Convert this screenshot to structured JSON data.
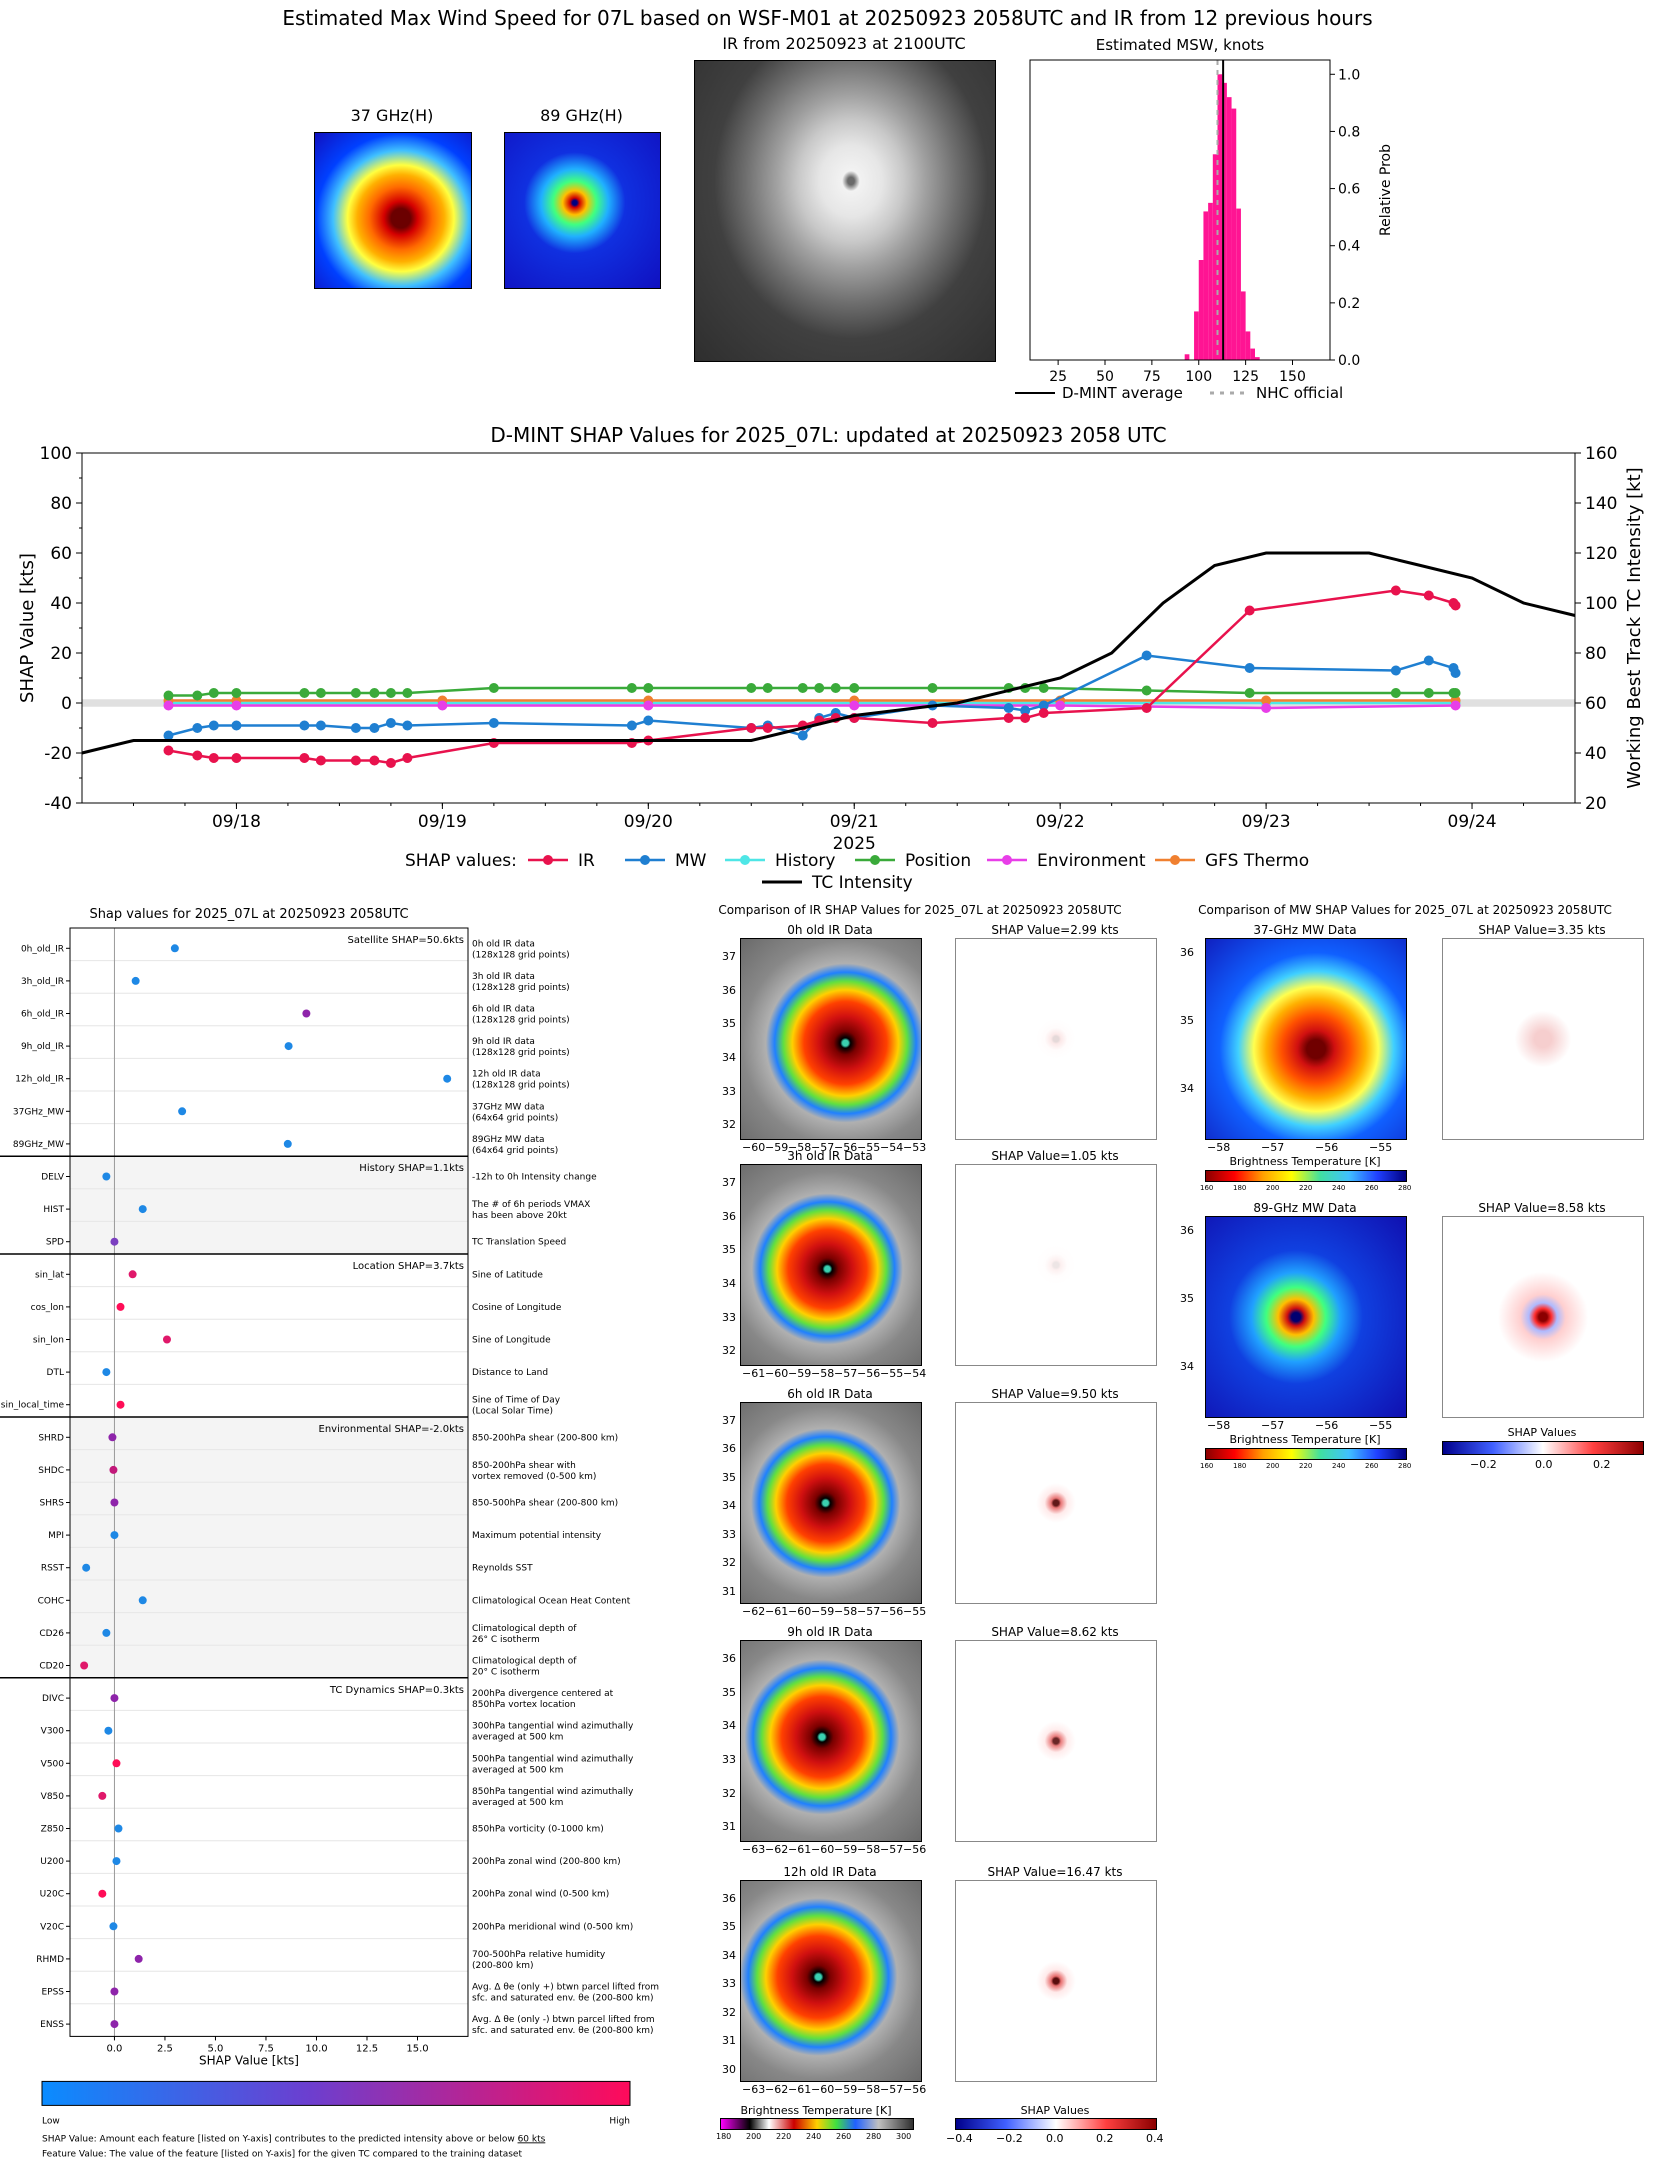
{
  "header": {
    "title": "Estimated Max Wind Speed for 07L based on WSF-M01 at 20250923 2058UTC and IR from 12 previous hours",
    "mw37_title": "37 GHz(H)",
    "mw89_title": "89 GHz(H)",
    "ir_title": "IR from 20250923 at 2100UTC",
    "hist_title": "Estimated MSW, knots",
    "hist_ylabel": "Relative Prob",
    "hist_legend_dmint": "D-MINT average",
    "hist_legend_nhc": "NHC official"
  },
  "shap_ts": {
    "title": "D-MINT SHAP Values for 2025_07L: updated at 20250923 2058 UTC",
    "ylabel_left": "SHAP Value [kts]",
    "ylabel_right": "Working Best Track TC Intensity [kt]",
    "xlabel": "2025",
    "legend_title": "SHAP values:",
    "legend_ir": "IR",
    "legend_mw": "MW",
    "legend_history": "History",
    "legend_position": "Position",
    "legend_environment": "Environment",
    "legend_gfs": "GFS Thermo",
    "legend_tc": "TC Intensity"
  },
  "beeswarm": {
    "title": "Shap values for 2025_07L at 20250923 2058UTC",
    "xlabel": "SHAP Value [kts]",
    "colorbar_low": "Low",
    "colorbar_high": "High",
    "footnote1_pre": "SHAP Value: Amount each feature [listed on Y-axis] contributes to the predicted intensity above or below ",
    "footnote1_link": "60 kts",
    "footnote2": "Feature Value: The value of the feature [listed on Y-axis] for the given TC compared to the training dataset",
    "groups": [
      {
        "label": "Satellite SHAP=50.6kts"
      },
      {
        "label": "History SHAP=1.1kts"
      },
      {
        "label": "Location SHAP=3.7kts"
      },
      {
        "label": "Environmental SHAP=-2.0kts"
      },
      {
        "label": "TC Dynamics SHAP=0.3kts"
      }
    ],
    "features": [
      {
        "name": "0h_old_IR",
        "desc1": "0h old IR data",
        "desc2": "(128x128 grid points)"
      },
      {
        "name": "3h_old_IR",
        "desc1": "3h old IR data",
        "desc2": "(128x128 grid points)"
      },
      {
        "name": "6h_old_IR",
        "desc1": "6h old IR data",
        "desc2": "(128x128 grid points)"
      },
      {
        "name": "9h_old_IR",
        "desc1": "9h old IR data",
        "desc2": "(128x128 grid points)"
      },
      {
        "name": "12h_old_IR",
        "desc1": "12h old IR data",
        "desc2": "(128x128 grid points)"
      },
      {
        "name": "37GHz_MW",
        "desc1": "37GHz MW data",
        "desc2": "(64x64 grid points)"
      },
      {
        "name": "89GHz_MW",
        "desc1": "89GHz MW data",
        "desc2": "(64x64 grid points)"
      },
      {
        "name": "DELV",
        "desc1": "-12h to 0h Intensity change",
        "desc2": ""
      },
      {
        "name": "HIST",
        "desc1": "The # of 6h periods VMAX",
        "desc2": "has been above 20kt"
      },
      {
        "name": "SPD",
        "desc1": "TC Translation Speed",
        "desc2": ""
      },
      {
        "name": "sin_lat",
        "desc1": "Sine of Latitude",
        "desc2": ""
      },
      {
        "name": "cos_lon",
        "desc1": "Cosine of Longitude",
        "desc2": ""
      },
      {
        "name": "sin_lon",
        "desc1": "Sine of Longitude",
        "desc2": ""
      },
      {
        "name": "DTL",
        "desc1": "Distance to Land",
        "desc2": ""
      },
      {
        "name": "sin_local_time",
        "desc1": "Sine of Time of Day",
        "desc2": "(Local Solar Time)"
      },
      {
        "name": "SHRD",
        "desc1": "850-200hPa shear (200-800 km)",
        "desc2": ""
      },
      {
        "name": "SHDC",
        "desc1": "850-200hPa shear with",
        "desc2": "vortex removed (0-500 km)"
      },
      {
        "name": "SHRS",
        "desc1": "850-500hPa shear (200-800 km)",
        "desc2": ""
      },
      {
        "name": "MPI",
        "desc1": "Maximum potential intensity",
        "desc2": ""
      },
      {
        "name": "RSST",
        "desc1": "Reynolds SST",
        "desc2": ""
      },
      {
        "name": "COHC",
        "desc1": "Climatological Ocean Heat Content",
        "desc2": ""
      },
      {
        "name": "CD26",
        "desc1": "Climatological depth of",
        "desc2": "26° C isotherm"
      },
      {
        "name": "CD20",
        "desc1": "Climatological depth of",
        "desc2": "20° C isotherm"
      },
      {
        "name": "DIVC",
        "desc1": "200hPa divergence centered at",
        "desc2": "850hPa vortex location"
      },
      {
        "name": "V300",
        "desc1": "300hPa tangential wind azimuthally",
        "desc2": "averaged at 500 km"
      },
      {
        "name": "V500",
        "desc1": "500hPa tangential wind azimuthally",
        "desc2": "averaged at 500 km"
      },
      {
        "name": "V850",
        "desc1": "850hPa tangential wind azimuthally",
        "desc2": "averaged at 500 km"
      },
      {
        "name": "Z850",
        "desc1": "850hPa vorticity (0-1000 km)",
        "desc2": ""
      },
      {
        "name": "U200",
        "desc1": "200hPa zonal wind (200-800 km)",
        "desc2": ""
      },
      {
        "name": "U20C",
        "desc1": "200hPa zonal wind (0-500 km)",
        "desc2": ""
      },
      {
        "name": "V20C",
        "desc1": "200hPa meridional wind (0-500 km)",
        "desc2": ""
      },
      {
        "name": "RHMD",
        "desc1": "700-500hPa relative humidity",
        "desc2": "(200-800 km)"
      },
      {
        "name": "EPSS",
        "desc1": "Avg. Δ θe (only +) btwn parcel lifted from",
        "desc2": "sfc. and saturated env. θe (200-800 km)"
      },
      {
        "name": "ENSS",
        "desc1": "Avg. Δ θe (only -) btwn parcel lifted from",
        "desc2": "sfc. and saturated env. θe (200-800 km)"
      }
    ]
  },
  "ir_compare": {
    "title": "Comparison of IR SHAP Values for 2025_07L at 20250923 2058UTC",
    "panels": [
      {
        "title": "0h old IR Data",
        "shap": "SHAP Value=2.99 kts"
      },
      {
        "title": "3h old IR Data",
        "shap": "SHAP Value=1.05 kts"
      },
      {
        "title": "6h old IR Data",
        "shap": "SHAP Value=9.50 kts"
      },
      {
        "title": "9h old IR Data",
        "shap": "SHAP Value=8.62 kts"
      },
      {
        "title": "12h old IR Data",
        "shap": "SHAP Value=16.47 kts"
      }
    ],
    "cb_bt_label": "Brightness Temperature [K]",
    "cb_shap_label": "SHAP Values"
  },
  "mw_compare": {
    "title": "Comparison of MW SHAP Values for 2025_07L at 20250923 2058UTC",
    "panels": [
      {
        "title": "37-GHz MW Data",
        "shap": "SHAP Value=3.35 kts"
      },
      {
        "title": "89-GHz MW Data",
        "shap": "SHAP Value=8.58 kts"
      }
    ],
    "cb_bt_label": "Brightness Temperature [K]",
    "cb_shap_label": "SHAP Values"
  },
  "colors": {
    "ir": "#e8124d",
    "mw": "#1f7fd1",
    "history": "#4ee6e6",
    "position": "#3aaa3a",
    "environment": "#e83ee8",
    "gfs": "#f08030",
    "tc": "#000000",
    "hist_bar": "#ff1493"
  },
  "chart_data": [
    {
      "type": "bar",
      "title": "Estimated MSW, knots",
      "ylabel": "Relative Prob",
      "x": [
        92.5,
        97.5,
        100,
        102.5,
        105,
        107.5,
        110,
        112.5,
        115,
        117.5,
        120,
        122.5,
        125,
        127.5,
        130
      ],
      "values": [
        0.02,
        0.17,
        0.35,
        0.52,
        0.55,
        0.72,
        1.0,
        0.97,
        0.92,
        0.88,
        0.53,
        0.24,
        0.1,
        0.04,
        0.01
      ],
      "xticks": [
        25,
        50,
        75,
        100,
        125,
        150
      ],
      "yticks": [
        0.0,
        0.2,
        0.4,
        0.6,
        0.8,
        1.0
      ],
      "xlim": [
        10,
        170
      ],
      "ylim": [
        0,
        1.05
      ],
      "dmint_average": 113,
      "nhc_official": 110
    },
    {
      "type": "line",
      "title": "D-MINT SHAP Values for 2025_07L: updated at 20250923 2058 UTC",
      "xlabel": "2025",
      "ylabel": "SHAP Value [kts]",
      "ylabel_right": "Working Best Track TC Intensity [kt]",
      "xticks": [
        "09/18",
        "09/19",
        "09/20",
        "09/21",
        "09/22",
        "09/23",
        "09/24"
      ],
      "xlim": [
        -0.75,
        6.5
      ],
      "ylim": [
        -40,
        100
      ],
      "ylim_right": [
        20,
        160
      ],
      "yticks": [
        -40,
        -20,
        0,
        20,
        40,
        60,
        80,
        100
      ],
      "yticks_right": [
        20,
        40,
        60,
        80,
        100,
        120,
        140,
        160
      ],
      "series": [
        {
          "name": "IR",
          "x": [
            -0.33,
            -0.19,
            -0.11,
            0.0,
            0.33,
            0.41,
            0.58,
            0.67,
            0.75,
            0.83,
            1.25,
            1.92,
            2.0,
            2.5,
            2.58,
            2.75,
            2.83,
            2.91,
            3.0,
            3.38,
            3.75,
            3.83,
            3.92,
            4.42,
            4.92,
            5.63,
            5.79,
            5.91,
            5.92
          ],
          "y": [
            -19,
            -21,
            -22,
            -22,
            -22,
            -23,
            -23,
            -23,
            -24,
            -22,
            -16,
            -16,
            -15,
            -10,
            -10,
            -9,
            -7,
            -6,
            -6,
            -8,
            -6,
            -6,
            -4,
            -2,
            37,
            45,
            43,
            40,
            39
          ]
        },
        {
          "name": "MW",
          "x": [
            -0.33,
            -0.19,
            -0.11,
            0.0,
            0.33,
            0.41,
            0.58,
            0.67,
            0.75,
            0.83,
            1.25,
            1.92,
            2.0,
            2.5,
            2.58,
            2.75,
            2.83,
            2.91,
            3.0,
            3.38,
            3.75,
            3.83,
            3.92,
            4.42,
            4.92,
            5.63,
            5.79,
            5.91,
            5.92
          ],
          "y": [
            -13,
            -10,
            -9,
            -9,
            -9,
            -9,
            -10,
            -10,
            -8,
            -9,
            -8,
            -9,
            -7,
            -10,
            -9,
            -13,
            -6,
            -4,
            -6,
            -1,
            -2,
            -3,
            -1,
            19,
            14,
            13,
            17,
            14,
            12
          ]
        },
        {
          "name": "History",
          "x": [
            -0.33,
            0.0,
            1.0,
            2.0,
            3.0,
            4.0,
            5.0,
            5.92
          ],
          "y": [
            0,
            0,
            0,
            0,
            0,
            0,
            0,
            0
          ]
        },
        {
          "name": "Position",
          "x": [
            -0.33,
            -0.19,
            -0.11,
            0.0,
            0.33,
            0.41,
            0.58,
            0.67,
            0.75,
            0.83,
            1.25,
            1.92,
            2.0,
            2.5,
            2.58,
            2.75,
            2.83,
            2.91,
            3.0,
            3.38,
            3.75,
            3.83,
            3.92,
            4.42,
            4.92,
            5.63,
            5.79,
            5.91,
            5.92
          ],
          "y": [
            3,
            3,
            4,
            4,
            4,
            4,
            4,
            4,
            4,
            4,
            6,
            6,
            6,
            6,
            6,
            6,
            6,
            6,
            6,
            6,
            6,
            6,
            6,
            5,
            4,
            4,
            4,
            4,
            4
          ]
        },
        {
          "name": "Environment",
          "x": [
            -0.33,
            0.0,
            1.0,
            2.0,
            3.0,
            4.0,
            5.0,
            5.92
          ],
          "y": [
            -1,
            -1,
            -1,
            -1,
            -1,
            -1,
            -2,
            -1
          ]
        },
        {
          "name": "GFS Thermo",
          "x": [
            -0.33,
            0.0,
            1.0,
            2.0,
            3.0,
            4.0,
            5.0,
            5.92
          ],
          "y": [
            1,
            1,
            1,
            1,
            1,
            1,
            1,
            1
          ]
        },
        {
          "name": "TC Intensity",
          "x": [
            -0.75,
            -0.5,
            0.0,
            0.5,
            1.0,
            1.5,
            2.0,
            2.5,
            3.0,
            3.5,
            4.0,
            4.25,
            4.5,
            4.75,
            5.0,
            5.25,
            5.5,
            5.75,
            6.0,
            6.25,
            6.5
          ],
          "y": [
            40,
            45,
            45,
            45,
            45,
            45,
            45,
            45,
            55,
            60,
            70,
            80,
            100,
            115,
            120,
            120,
            120,
            115,
            110,
            100,
            95
          ]
        }
      ]
    },
    {
      "type": "scatter",
      "title": "Shap values for 2025_07L at 20250923 2058UTC",
      "xlabel": "SHAP Value [kts]",
      "xticks": [
        0.0,
        2.5,
        5.0,
        7.5,
        10.0,
        12.5,
        15.0
      ],
      "xlim": [
        -2.2,
        17.5
      ],
      "features": [
        "0h_old_IR",
        "3h_old_IR",
        "6h_old_IR",
        "9h_old_IR",
        "12h_old_IR",
        "37GHz_MW",
        "89GHz_MW",
        "DELV",
        "HIST",
        "SPD",
        "sin_lat",
        "cos_lon",
        "sin_lon",
        "DTL",
        "sin_local_time",
        "SHRD",
        "SHDC",
        "SHRS",
        "MPI",
        "RSST",
        "COHC",
        "CD26",
        "CD20",
        "DIVC",
        "V300",
        "V500",
        "V850",
        "Z850",
        "U200",
        "U20C",
        "V20C",
        "RHMD",
        "EPSS",
        "ENSS"
      ],
      "values": [
        2.99,
        1.05,
        9.5,
        8.62,
        16.47,
        3.35,
        8.58,
        -0.4,
        1.4,
        0.0,
        0.9,
        0.3,
        2.6,
        -0.4,
        0.3,
        -0.1,
        -0.05,
        0.0,
        0.0,
        -1.4,
        1.4,
        -0.4,
        -1.5,
        0.0,
        -0.3,
        0.1,
        -0.6,
        0.2,
        0.1,
        -0.6,
        -0.05,
        1.2,
        0.0,
        0.0
      ],
      "feature_value_color": [
        "#1e88e5",
        "#1e88e5",
        "#8e24aa",
        "#1e88e5",
        "#1e88e5",
        "#1e88e5",
        "#1e88e5",
        "#1e88e5",
        "#1e88e5",
        "#7b3fc0",
        "#e0186a",
        "#ff0d57",
        "#e0186a",
        "#1e88e5",
        "#ff0d57",
        "#8e24aa",
        "#c2187a",
        "#8e24aa",
        "#1e88e5",
        "#1e88e5",
        "#1e88e5",
        "#1e88e5",
        "#e0186a",
        "#8e24aa",
        "#1e88e5",
        "#ff0d57",
        "#e0186a",
        "#1e88e5",
        "#1e88e5",
        "#ff0d57",
        "#1e88e5",
        "#8e24aa",
        "#8e24aa",
        "#8e24aa"
      ]
    }
  ]
}
